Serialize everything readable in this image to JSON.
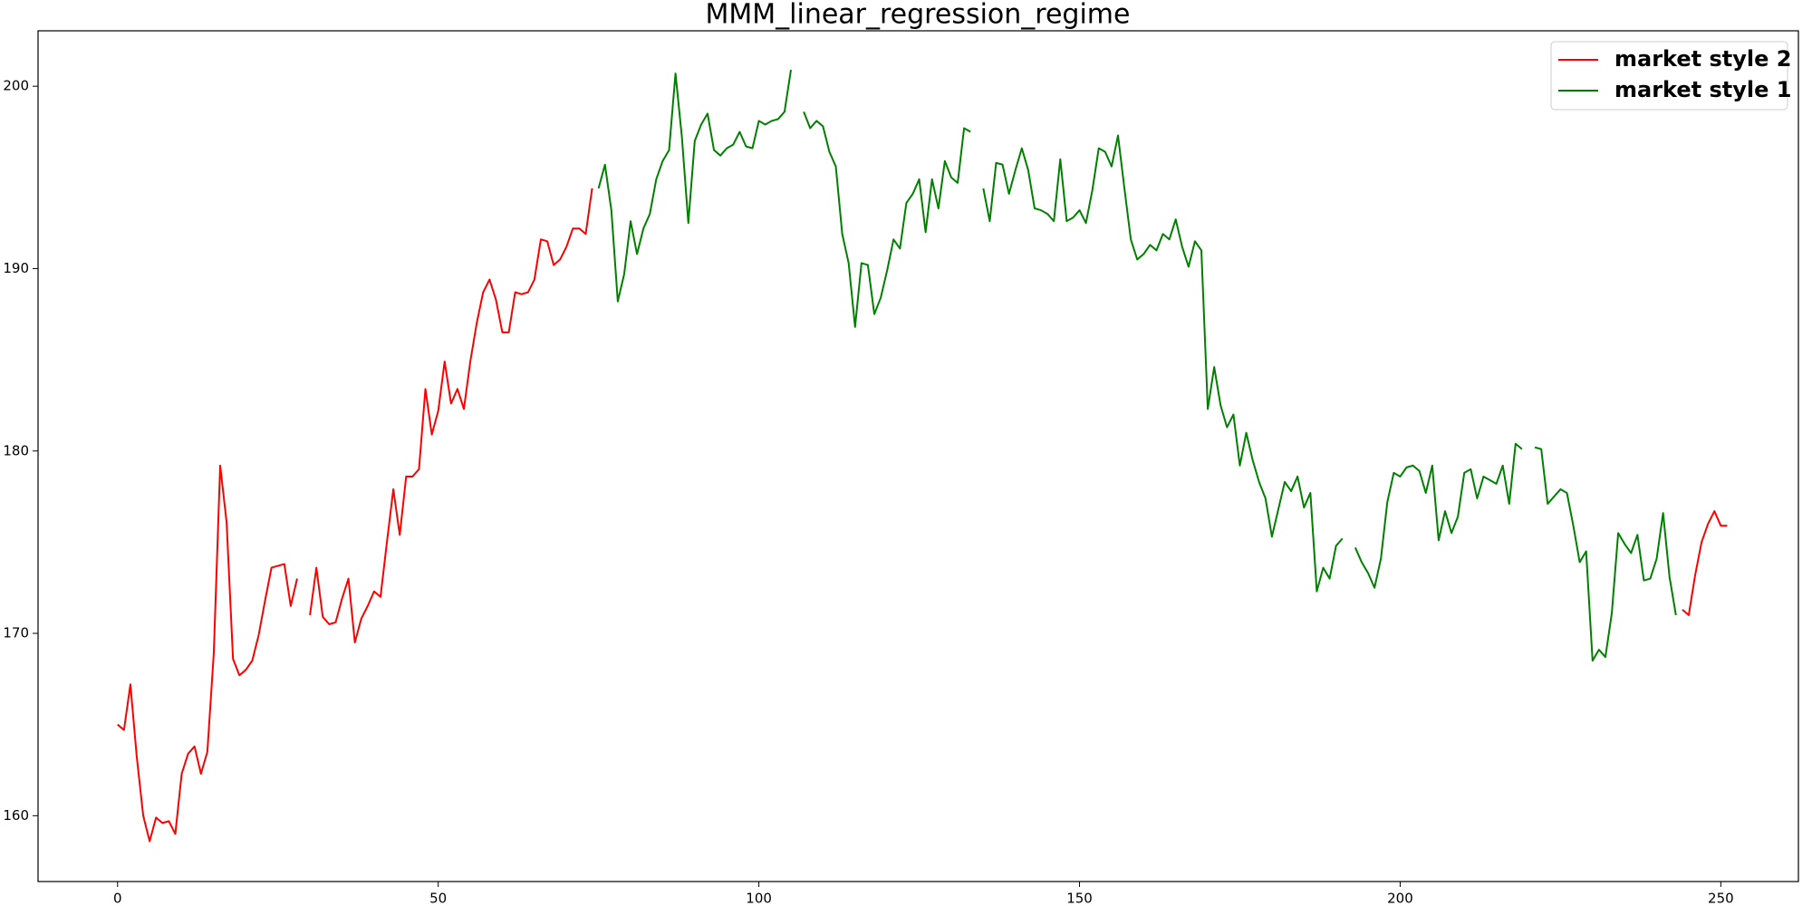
{
  "chart_data": {
    "type": "line",
    "title": "MMM_linear_regression_regime",
    "x": [
      0,
      1,
      2,
      3,
      4,
      5,
      6,
      7,
      8,
      9,
      10,
      11,
      12,
      13,
      14,
      15,
      16,
      17,
      18,
      19,
      20,
      21,
      22,
      23,
      24,
      25,
      26,
      27,
      28,
      29,
      30,
      31,
      32,
      33,
      34,
      35,
      36,
      37,
      38,
      39,
      40,
      41,
      42,
      43,
      44,
      45,
      46,
      47,
      48,
      49,
      50,
      51,
      52,
      53,
      54,
      55,
      56,
      57,
      58,
      59,
      60,
      61,
      62,
      63,
      64,
      65,
      66,
      67,
      68,
      69,
      70,
      71,
      72,
      73,
      74,
      75,
      76,
      77,
      78,
      79,
      80,
      81,
      82,
      83,
      84,
      85,
      86,
      87,
      88,
      89,
      90,
      91,
      92,
      93,
      94,
      95,
      96,
      97,
      98,
      99,
      100,
      101,
      102,
      103,
      104,
      105,
      106,
      107,
      108,
      109,
      110,
      111,
      112,
      113,
      114,
      115,
      116,
      117,
      118,
      119,
      120,
      121,
      122,
      123,
      124,
      125,
      126,
      127,
      128,
      129,
      130,
      131,
      132,
      133,
      134,
      135,
      136,
      137,
      138,
      139,
      140,
      141,
      142,
      143,
      144,
      145,
      146,
      147,
      148,
      149,
      150,
      151,
      152,
      153,
      154,
      155,
      156,
      157,
      158,
      159,
      160,
      161,
      162,
      163,
      164,
      165,
      166,
      167,
      168,
      169,
      170,
      171,
      172,
      173,
      174,
      175,
      176,
      177,
      178,
      179,
      180,
      181,
      182,
      183,
      184,
      185,
      186,
      187,
      188,
      189,
      190,
      191,
      192,
      193,
      194,
      195,
      196,
      197,
      198,
      199,
      200,
      201,
      202,
      203,
      204,
      205,
      206,
      207,
      208,
      209,
      210,
      211,
      212,
      213,
      214,
      215,
      216,
      217,
      218,
      219,
      220,
      221,
      222,
      223,
      224,
      225,
      226,
      227,
      228,
      229,
      230,
      231,
      232,
      233,
      234,
      235,
      236,
      237,
      238,
      239,
      240,
      241,
      242,
      243,
      244,
      245,
      246,
      247,
      248,
      249,
      250,
      251
    ],
    "series": [
      {
        "name": "market style 2",
        "color": "#ff0000",
        "values": [
          165.0,
          164.7,
          167.2,
          163.2,
          160.0,
          158.6,
          159.9,
          159.6,
          159.7,
          159.0,
          162.3,
          163.4,
          163.8,
          162.3,
          163.5,
          168.9,
          179.2,
          176.1,
          168.6,
          167.7,
          168.0,
          168.5,
          169.9,
          171.8,
          173.6,
          173.7,
          173.8,
          171.5,
          173.0,
          null,
          171.0,
          173.6,
          170.9,
          170.5,
          170.6,
          171.9,
          173.0,
          169.5,
          170.8,
          171.5,
          172.3,
          172.0,
          175.0,
          177.9,
          175.4,
          178.6,
          178.6,
          179.0,
          183.4,
          180.9,
          182.2,
          184.9,
          182.6,
          183.4,
          182.3,
          184.9,
          187.0,
          188.7,
          189.4,
          188.3,
          186.5,
          186.5,
          188.7,
          188.6,
          188.7,
          189.4,
          191.6,
          191.5,
          190.2,
          190.5,
          191.2,
          192.2,
          192.2,
          191.9,
          194.4,
          null,
          null,
          null,
          null,
          null,
          null,
          null,
          null,
          null,
          null,
          null,
          null,
          null,
          null,
          null,
          null,
          null,
          null,
          null,
          null,
          null,
          null,
          null,
          null,
          null,
          null,
          null,
          null,
          null,
          null,
          null,
          null,
          null,
          null,
          null,
          null,
          null,
          null,
          null,
          null,
          null,
          null,
          null,
          null,
          null,
          null,
          null,
          null,
          null,
          null,
          null,
          null,
          null,
          null,
          null,
          null,
          null,
          null,
          null,
          null,
          null,
          null,
          null,
          null,
          null,
          null,
          null,
          null,
          null,
          null,
          null,
          null,
          null,
          null,
          null,
          null,
          null,
          null,
          null,
          null,
          null,
          null,
          null,
          null,
          null,
          null,
          null,
          null,
          null,
          null,
          null,
          null,
          null,
          null,
          null,
          null,
          null,
          null,
          null,
          null,
          null,
          null,
          null,
          null,
          null,
          null,
          null,
          null,
          null,
          null,
          null,
          null,
          null,
          null,
          null,
          null,
          null,
          null,
          null,
          null,
          null,
          null,
          null,
          null,
          null,
          null,
          null,
          null,
          null,
          null,
          null,
          null,
          null,
          null,
          null,
          null,
          null,
          null,
          null,
          null,
          null,
          null,
          null,
          null,
          null,
          null,
          null,
          null,
          null,
          null,
          null,
          null,
          null,
          null,
          null,
          null,
          null,
          null,
          null,
          null,
          null,
          null,
          null,
          null,
          null,
          null,
          null,
          null,
          null,
          171.3,
          171.0,
          173.2,
          175.0,
          176.0,
          176.7,
          175.9,
          175.9
        ]
      },
      {
        "name": "market style 1",
        "color": "#008000",
        "values": [
          null,
          null,
          null,
          null,
          null,
          null,
          null,
          null,
          null,
          null,
          null,
          null,
          null,
          null,
          null,
          null,
          null,
          null,
          null,
          null,
          null,
          null,
          null,
          null,
          null,
          null,
          null,
          null,
          null,
          null,
          null,
          null,
          null,
          null,
          null,
          null,
          null,
          null,
          null,
          null,
          null,
          null,
          null,
          null,
          null,
          null,
          null,
          null,
          null,
          null,
          null,
          null,
          null,
          null,
          null,
          null,
          null,
          null,
          null,
          null,
          null,
          null,
          null,
          null,
          null,
          null,
          null,
          null,
          null,
          null,
          null,
          null,
          null,
          null,
          null,
          194.4,
          195.7,
          193.2,
          188.2,
          189.7,
          192.6,
          190.8,
          192.2,
          193.0,
          194.9,
          195.9,
          196.5,
          200.7,
          197.2,
          192.5,
          197.0,
          197.9,
          198.5,
          196.5,
          196.2,
          196.6,
          196.8,
          197.5,
          196.7,
          196.6,
          198.1,
          197.9,
          198.1,
          198.2,
          198.6,
          200.9,
          null,
          198.6,
          197.7,
          198.1,
          197.8,
          196.4,
          195.6,
          191.9,
          190.3,
          186.8,
          190.3,
          190.2,
          187.5,
          188.4,
          189.9,
          191.6,
          191.1,
          193.6,
          194.1,
          194.9,
          192.0,
          194.9,
          193.3,
          195.9,
          195.0,
          194.7,
          197.7,
          197.5,
          null,
          194.4,
          192.6,
          195.8,
          195.7,
          194.1,
          195.4,
          196.6,
          195.4,
          193.3,
          193.2,
          193.0,
          192.6,
          196.0,
          192.6,
          192.8,
          193.2,
          192.5,
          194.3,
          196.6,
          196.4,
          195.6,
          197.3,
          194.4,
          191.6,
          190.5,
          190.8,
          191.3,
          191.0,
          191.9,
          191.6,
          192.7,
          191.2,
          190.1,
          191.5,
          191.0,
          182.3,
          184.6,
          182.5,
          181.3,
          182.0,
          179.2,
          181.0,
          179.5,
          178.3,
          177.4,
          175.3,
          176.8,
          178.3,
          177.8,
          178.6,
          176.9,
          177.7,
          172.3,
          173.6,
          173.0,
          174.8,
          175.2,
          null,
          174.7,
          173.9,
          173.3,
          172.5,
          174.1,
          177.2,
          178.8,
          178.6,
          179.1,
          179.2,
          178.9,
          177.7,
          179.2,
          175.1,
          176.7,
          175.5,
          176.4,
          178.8,
          179.0,
          177.4,
          178.6,
          178.4,
          178.2,
          179.2,
          177.1,
          180.4,
          180.1,
          null,
          180.2,
          180.1,
          177.1,
          177.5,
          177.9,
          177.7,
          175.9,
          173.9,
          174.5,
          168.5,
          169.1,
          168.7,
          171.1,
          175.5,
          174.9,
          174.4,
          175.4,
          172.9,
          173.0,
          174.1,
          176.6,
          173.1,
          171.0,
          null,
          null,
          null,
          null,
          null,
          null,
          null,
          null
        ]
      }
    ],
    "xlim": [
      -12.4,
      262.1
    ],
    "xticks": [
      0,
      50,
      100,
      150,
      200,
      250
    ],
    "ylim": [
      156.39,
      203.04
    ],
    "yticks": [
      160,
      170,
      180,
      190,
      200
    ],
    "grid": false,
    "legend": "upper right"
  }
}
